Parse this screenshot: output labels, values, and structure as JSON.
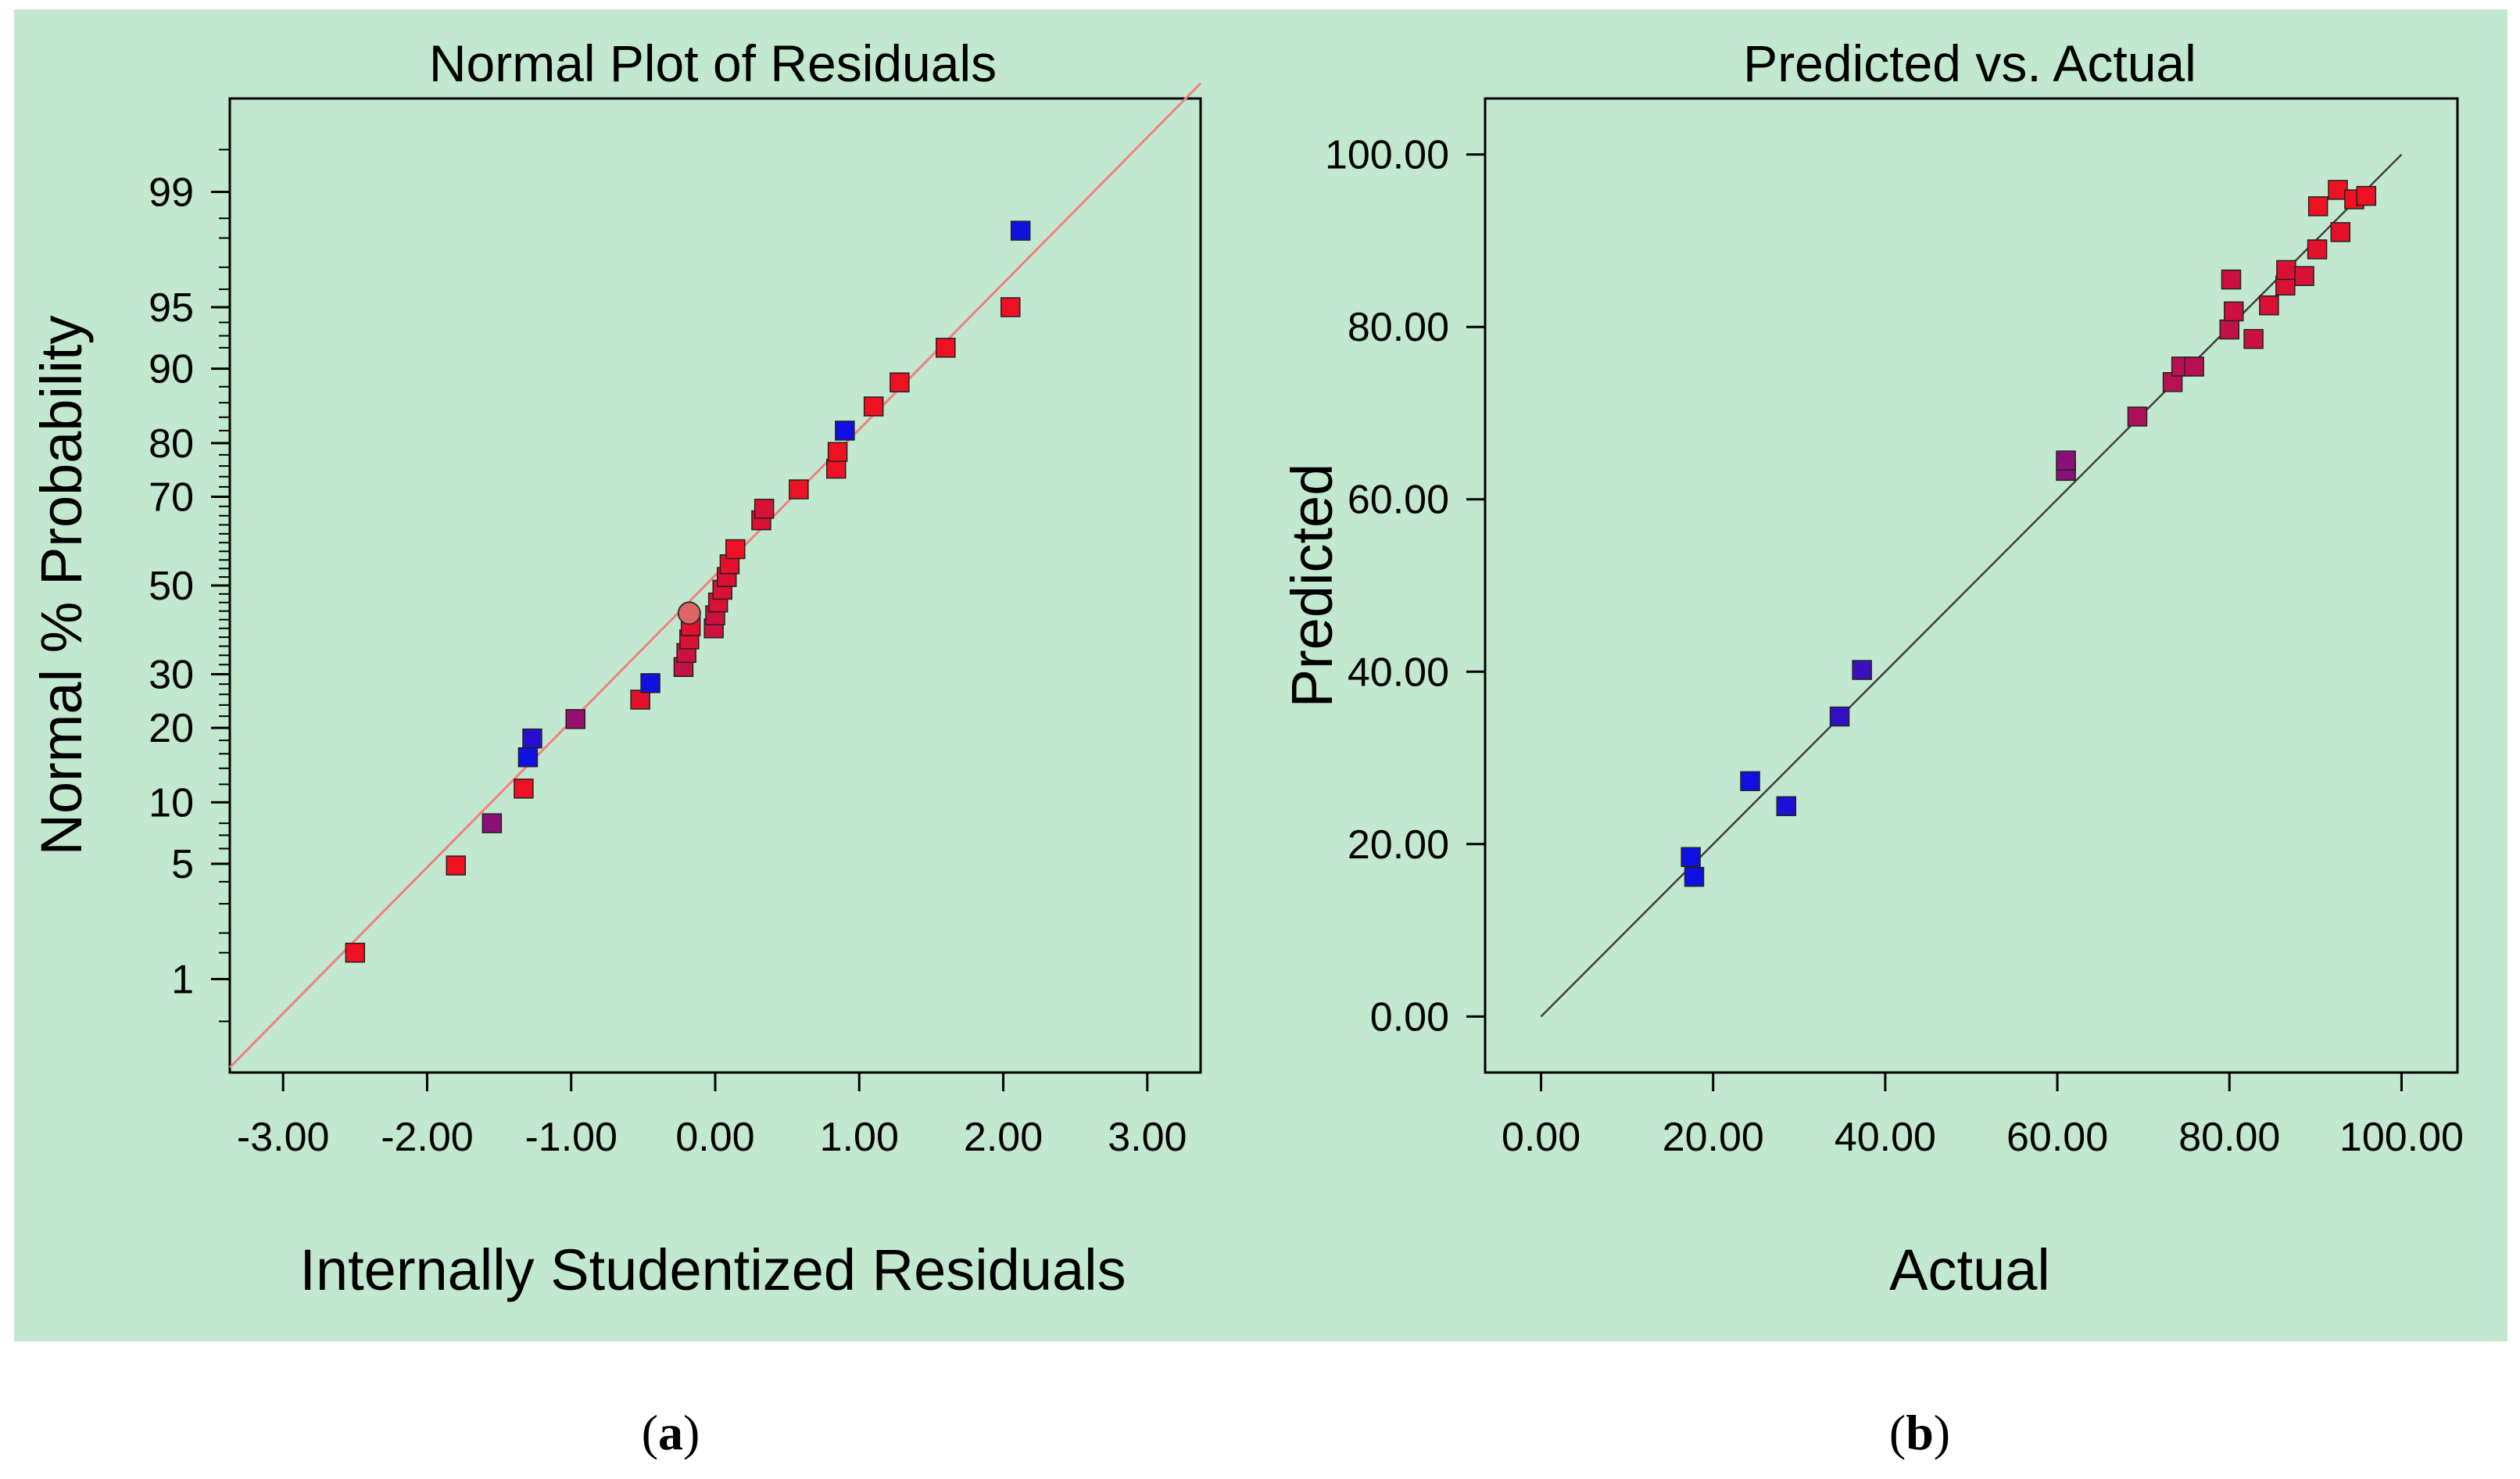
{
  "colors": {
    "panel_bg": "#c2e8cf",
    "fit_line_a": "#f08080",
    "fit_line_b": "#404040",
    "low": "#1010e0",
    "high": "#ee1122"
  },
  "captions": {
    "a": "a",
    "b": "b"
  },
  "chart_data": [
    {
      "type": "scatter",
      "title": "Normal Plot of Residuals",
      "xlabel": "Internally Studentized Residuals",
      "ylabel": "Normal % Probability",
      "xlim": [
        -3.37,
        3.37
      ],
      "ylim": [
        0.2,
        99.8
      ],
      "y_scale": "normal-probability",
      "x_ticks": [
        "-3.00",
        "-2.00",
        "-1.00",
        "0.00",
        "1.00",
        "2.00",
        "3.00"
      ],
      "y_ticks": [
        "1",
        "5",
        "10",
        "20",
        "30",
        "50",
        "70",
        "80",
        "90",
        "95",
        "99"
      ],
      "reference_line": {
        "x": [
          -3.37,
          3.37
        ],
        "y": [
          0.22,
          99.85
        ]
      },
      "points": [
        {
          "x": -2.5,
          "y": 1.5,
          "t": 1.0
        },
        {
          "x": -1.8,
          "y": 4.9,
          "t": 1.0
        },
        {
          "x": -1.55,
          "y": 8.0,
          "t": 0.55
        },
        {
          "x": -1.33,
          "y": 11.5,
          "t": 1.0
        },
        {
          "x": -1.3,
          "y": 15.5,
          "t": 0.0
        },
        {
          "x": -1.27,
          "y": 18.3,
          "t": 0.1
        },
        {
          "x": -0.97,
          "y": 21.5,
          "t": 0.6
        },
        {
          "x": -0.52,
          "y": 25.0,
          "t": 0.95
        },
        {
          "x": -0.45,
          "y": 28.2,
          "t": 0.0
        },
        {
          "x": -0.22,
          "y": 31.5,
          "t": 0.8
        },
        {
          "x": -0.2,
          "y": 34.5,
          "t": 0.85
        },
        {
          "x": -0.18,
          "y": 37.5,
          "t": 0.9
        },
        {
          "x": -0.17,
          "y": 40.5,
          "t": 0.95
        },
        {
          "x": -0.01,
          "y": 40.0,
          "t": 0.85
        },
        {
          "x": 0.0,
          "y": 43.0,
          "t": 0.85
        },
        {
          "x": 0.02,
          "y": 46.0,
          "t": 0.9
        },
        {
          "x": 0.05,
          "y": 49.0,
          "t": 0.9
        },
        {
          "x": 0.08,
          "y": 52.0,
          "t": 0.9
        },
        {
          "x": 0.1,
          "y": 55.0,
          "t": 0.95
        },
        {
          "x": 0.14,
          "y": 58.5,
          "t": 1.0
        },
        {
          "x": 0.32,
          "y": 65.0,
          "t": 0.9
        },
        {
          "x": 0.34,
          "y": 67.5,
          "t": 0.9
        },
        {
          "x": 0.58,
          "y": 71.5,
          "t": 1.0
        },
        {
          "x": 0.84,
          "y": 75.5,
          "t": 1.0
        },
        {
          "x": 0.85,
          "y": 78.5,
          "t": 1.0
        },
        {
          "x": 0.9,
          "y": 82.0,
          "t": 0.0
        },
        {
          "x": 1.1,
          "y": 85.5,
          "t": 1.0
        },
        {
          "x": 1.28,
          "y": 88.5,
          "t": 1.0
        },
        {
          "x": 1.6,
          "y": 92.0,
          "t": 1.0
        },
        {
          "x": 2.05,
          "y": 95.0,
          "t": 1.0
        },
        {
          "x": 2.12,
          "y": 98.2,
          "t": 0.0
        }
      ],
      "highlighted": {
        "x": -0.18,
        "y": 43.5
      }
    },
    {
      "type": "scatter",
      "title": "Predicted vs. Actual",
      "xlabel": "Actual",
      "ylabel": "Predicted",
      "xlim": [
        -6.5,
        106.5
      ],
      "ylim": [
        -6.5,
        106.5
      ],
      "x_ticks": [
        "0.00",
        "20.00",
        "40.00",
        "60.00",
        "80.00",
        "100.00"
      ],
      "y_ticks": [
        "0.00",
        "20.00",
        "40.00",
        "60.00",
        "80.00",
        "100.00"
      ],
      "reference_line": {
        "x": [
          0,
          100
        ],
        "y": [
          0,
          100
        ]
      },
      "points": [
        {
          "x": 17.4,
          "y": 18.5,
          "t": 0.0
        },
        {
          "x": 17.8,
          "y": 16.2,
          "t": 0.0
        },
        {
          "x": 24.3,
          "y": 27.3,
          "t": 0.0
        },
        {
          "x": 28.5,
          "y": 24.4,
          "t": 0.05
        },
        {
          "x": 34.7,
          "y": 34.8,
          "t": 0.15
        },
        {
          "x": 37.3,
          "y": 40.2,
          "t": 0.2
        },
        {
          "x": 61.0,
          "y": 63.3,
          "t": 0.55
        },
        {
          "x": 61.0,
          "y": 64.5,
          "t": 0.55
        },
        {
          "x": 69.3,
          "y": 69.6,
          "t": 0.7
        },
        {
          "x": 73.4,
          "y": 73.6,
          "t": 0.75
        },
        {
          "x": 74.4,
          "y": 75.4,
          "t": 0.75
        },
        {
          "x": 75.9,
          "y": 75.4,
          "t": 0.75
        },
        {
          "x": 80.0,
          "y": 79.7,
          "t": 0.8
        },
        {
          "x": 80.2,
          "y": 85.5,
          "t": 0.85
        },
        {
          "x": 80.5,
          "y": 81.8,
          "t": 0.85
        },
        {
          "x": 82.8,
          "y": 78.6,
          "t": 0.85
        },
        {
          "x": 84.6,
          "y": 82.5,
          "t": 0.9
        },
        {
          "x": 86.5,
          "y": 84.8,
          "t": 0.9
        },
        {
          "x": 86.6,
          "y": 86.6,
          "t": 0.9
        },
        {
          "x": 88.7,
          "y": 85.9,
          "t": 0.9
        },
        {
          "x": 90.2,
          "y": 89.0,
          "t": 0.95
        },
        {
          "x": 90.3,
          "y": 94.0,
          "t": 1.0
        },
        {
          "x": 92.6,
          "y": 95.9,
          "t": 1.0
        },
        {
          "x": 92.9,
          "y": 91.0,
          "t": 0.95
        },
        {
          "x": 94.5,
          "y": 94.8,
          "t": 1.0
        },
        {
          "x": 95.9,
          "y": 95.2,
          "t": 1.0
        }
      ]
    }
  ]
}
